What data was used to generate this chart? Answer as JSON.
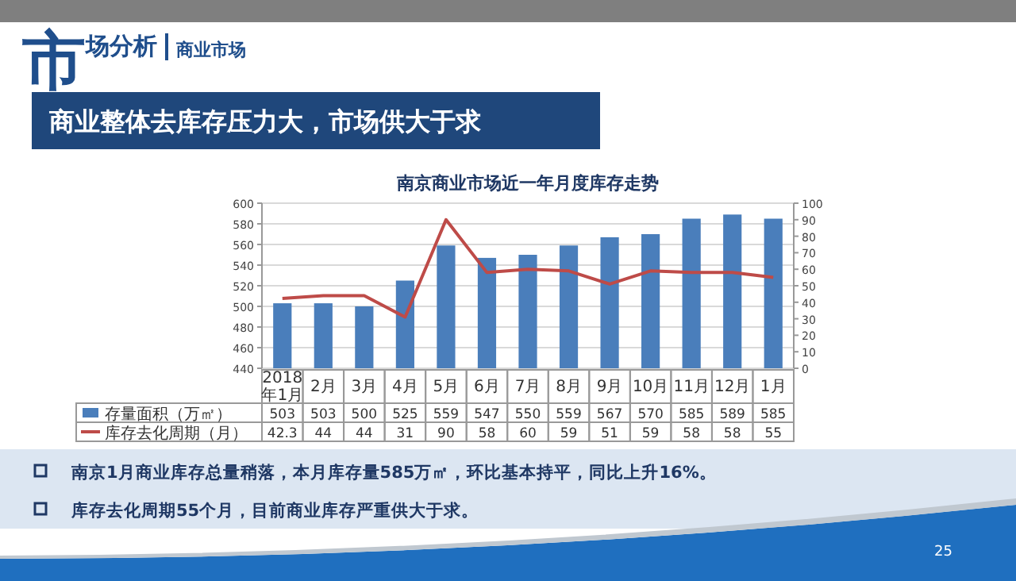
{
  "chart_data": {
    "type": "bar",
    "title": "南京商业市场近一年月度库存走势",
    "annotations": [
      "市场分析",
      "商业市场",
      "商业整体去库存压力大，市场供大于求",
      "南京1月商业库存总量稍落，本月库存量585万㎡，环比基本持平，同比上升16%。",
      "库存去化周期55个月，目前商业库存严重供大于求。",
      "25"
    ],
    "categories": [
      "2018年1月",
      "2月",
      "3月",
      "4月",
      "5月",
      "6月",
      "7月",
      "8月",
      "9月",
      "10月",
      "11月",
      "12月",
      "1月"
    ],
    "series": [
      {
        "name": "存量面积（万㎡）",
        "color": "#4a7ebb",
        "values": [
          503,
          503,
          500,
          525,
          559,
          547,
          550,
          559,
          567,
          570,
          585,
          589,
          585
        ]
      },
      {
        "name": "库存去化周期（月）",
        "type": "line",
        "axis": "y2",
        "color": "#be4b48",
        "values": [
          42.3,
          44,
          44,
          31,
          90,
          58,
          60,
          59,
          51,
          59,
          58,
          58,
          55
        ]
      }
    ],
    "ylim": [
      440,
      600
    ],
    "yticks": [
      440,
      460,
      480,
      500,
      520,
      540,
      560,
      580,
      600
    ],
    "y2lim": [
      0,
      100
    ],
    "y2ticks": [
      0,
      10,
      20,
      30,
      40,
      50,
      60,
      70,
      80,
      90,
      100
    ],
    "grid": "y",
    "data_labels": true,
    "legend": "left",
    "marker": "none",
    "line_style": "solid"
  }
}
